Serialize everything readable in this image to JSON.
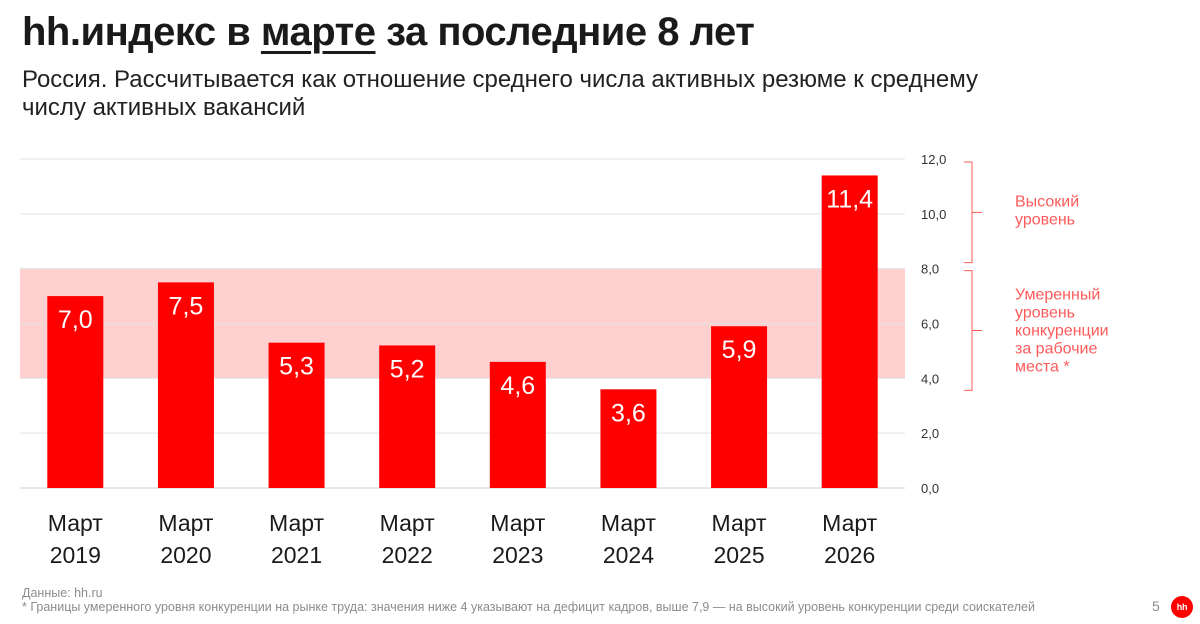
{
  "header": {
    "title_before": "hh.индекс в ",
    "title_highlight": "марте",
    "title_after": " за последние 8 лет",
    "subtitle": "Россия. Рассчитывается как отношение среднего числа активных резюме к среднему числу активных вакансий"
  },
  "chart_data": {
    "type": "bar",
    "categories": [
      "Март 2019",
      "Март 2020",
      "Март 2021",
      "Март 2022",
      "Март 2023",
      "Март 2024",
      "Март 2025",
      "Март 2026"
    ],
    "category_lines": [
      [
        "Март",
        "2019"
      ],
      [
        "Март",
        "2020"
      ],
      [
        "Март",
        "2021"
      ],
      [
        "Март",
        "2022"
      ],
      [
        "Март",
        "2023"
      ],
      [
        "Март",
        "2024"
      ],
      [
        "Март",
        "2025"
      ],
      [
        "Март",
        "2026"
      ]
    ],
    "values": [
      7.0,
      7.5,
      5.3,
      5.2,
      4.6,
      3.6,
      5.9,
      11.4
    ],
    "value_labels": [
      "7,0",
      "7,5",
      "5,3",
      "5,2",
      "4,6",
      "3,6",
      "5,9",
      "11,4"
    ],
    "ylim": [
      0,
      12
    ],
    "y_ticks": [
      0,
      2,
      4,
      6,
      8,
      10,
      12
    ],
    "y_tick_labels": [
      "0,0",
      "2,0",
      "4,0",
      "6,0",
      "8,0",
      "10,0",
      "12,0"
    ],
    "y_axis_side": "right",
    "grid": true,
    "bar_color": "#ff0000",
    "band": {
      "from": 4,
      "to": 8,
      "color": "#ffd0d0"
    },
    "annotations": [
      {
        "from": 8,
        "to": 12,
        "lines": [
          "Высокий",
          "уровень"
        ],
        "color": "#ff5a5a"
      },
      {
        "from": 4,
        "to": 8,
        "lines": [
          "Умеренный",
          "уровень",
          "конкуренции",
          "за рабочие",
          "места *"
        ],
        "color": "#ff5a5a"
      }
    ]
  },
  "footer": {
    "source": "Данные: hh.ru",
    "note": "* Границы умеренного уровня конкуренции на рынке труда: значения ниже 4 указывают на дефицит кадров, выше 7,9 — на высокий уровень конкуренции среди соискателей",
    "page_number": "5",
    "logo_text": "hh"
  }
}
